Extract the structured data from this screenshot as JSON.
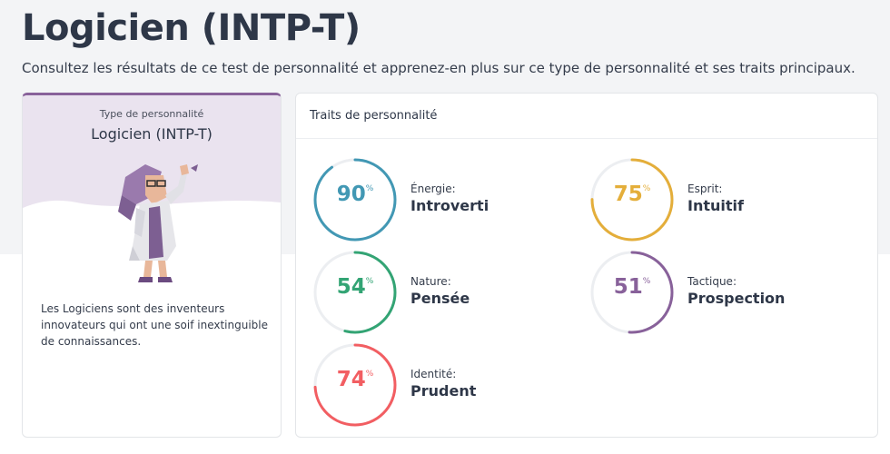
{
  "header": {
    "title": "Logicien (INTP-T)",
    "subtitle": "Consultez les résultats de ce test de personnalité et apprenez-en plus sur ce type de personnalité et ses traits principaux."
  },
  "type_card": {
    "label": "Type de personnalité",
    "name": "Logicien (INTP-T)",
    "description": "Les Logiciens sont des inventeurs innovateurs qui ont une soif inextinguible de connaissances.",
    "accent_color": "#88619a"
  },
  "traits": {
    "title": "Traits de personnalité",
    "items": [
      {
        "label": "Énergie:",
        "value": "Introverti",
        "percent": 90,
        "percent_text": "90",
        "unit": "%",
        "color": "#4298b4"
      },
      {
        "label": "Esprit:",
        "value": "Intuitif",
        "percent": 75,
        "percent_text": "75",
        "unit": "%",
        "color": "#e4ae3a"
      },
      {
        "label": "Nature:",
        "value": "Pensée",
        "percent": 54,
        "percent_text": "54",
        "unit": "%",
        "color": "#33a474"
      },
      {
        "label": "Tactique:",
        "value": "Prospection",
        "percent": 51,
        "percent_text": "51",
        "unit": "%",
        "color": "#88619a"
      },
      {
        "label": "Identité:",
        "value": "Prudent",
        "percent": 74,
        "percent_text": "74",
        "unit": "%",
        "color": "#f25e62"
      }
    ]
  }
}
